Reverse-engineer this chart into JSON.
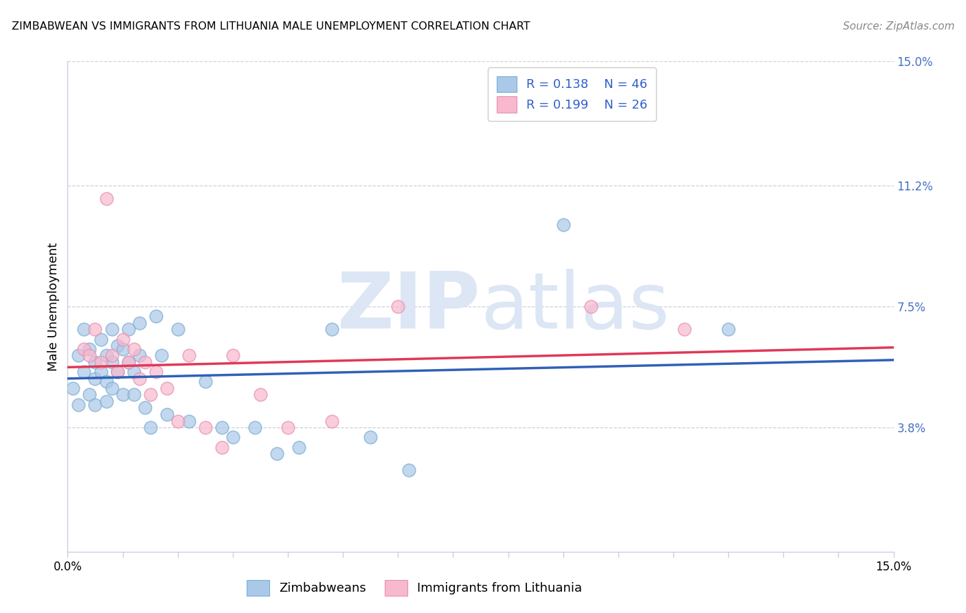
{
  "title": "ZIMBABWEAN VS IMMIGRANTS FROM LITHUANIA MALE UNEMPLOYMENT CORRELATION CHART",
  "source_text": "Source: ZipAtlas.com",
  "ylabel": "Male Unemployment",
  "xlim": [
    0,
    0.15
  ],
  "ylim": [
    0,
    0.15
  ],
  "ytick_positions": [
    0.038,
    0.075,
    0.112,
    0.15
  ],
  "ytick_labels": [
    "3.8%",
    "7.5%",
    "11.2%",
    "15.0%"
  ],
  "legend_labels": [
    "Zimbabweans",
    "Immigrants from Lithuania"
  ],
  "R_blue": "0.138",
  "N_blue": "46",
  "R_pink": "0.199",
  "N_pink": "26",
  "blue_color": "#aac8e8",
  "blue_edge_color": "#7aaed4",
  "pink_color": "#f8b8ce",
  "pink_edge_color": "#e890b0",
  "blue_line_color": "#3060b8",
  "pink_line_color": "#e03858",
  "legend_text_color": "#3060cc",
  "watermark_color": "#dce6f4",
  "grid_color": "#c8d0e0",
  "right_tick_color": "#4472c4",
  "blue_scatter_x": [
    0.001,
    0.002,
    0.002,
    0.003,
    0.003,
    0.004,
    0.004,
    0.005,
    0.005,
    0.005,
    0.006,
    0.006,
    0.007,
    0.007,
    0.007,
    0.008,
    0.008,
    0.008,
    0.009,
    0.009,
    0.01,
    0.01,
    0.011,
    0.011,
    0.012,
    0.012,
    0.013,
    0.013,
    0.014,
    0.015,
    0.016,
    0.017,
    0.018,
    0.02,
    0.022,
    0.025,
    0.028,
    0.03,
    0.034,
    0.038,
    0.042,
    0.048,
    0.055,
    0.062,
    0.09,
    0.12
  ],
  "blue_scatter_y": [
    0.05,
    0.06,
    0.045,
    0.068,
    0.055,
    0.062,
    0.048,
    0.058,
    0.053,
    0.045,
    0.065,
    0.055,
    0.06,
    0.052,
    0.046,
    0.068,
    0.058,
    0.05,
    0.063,
    0.055,
    0.062,
    0.048,
    0.068,
    0.058,
    0.055,
    0.048,
    0.07,
    0.06,
    0.044,
    0.038,
    0.072,
    0.06,
    0.042,
    0.068,
    0.04,
    0.052,
    0.038,
    0.035,
    0.038,
    0.03,
    0.032,
    0.068,
    0.035,
    0.025,
    0.1,
    0.068
  ],
  "pink_scatter_x": [
    0.003,
    0.004,
    0.005,
    0.006,
    0.007,
    0.008,
    0.009,
    0.01,
    0.011,
    0.012,
    0.013,
    0.014,
    0.015,
    0.016,
    0.018,
    0.02,
    0.022,
    0.025,
    0.028,
    0.03,
    0.035,
    0.04,
    0.048,
    0.06,
    0.095,
    0.112
  ],
  "pink_scatter_y": [
    0.062,
    0.06,
    0.068,
    0.058,
    0.108,
    0.06,
    0.055,
    0.065,
    0.058,
    0.062,
    0.053,
    0.058,
    0.048,
    0.055,
    0.05,
    0.04,
    0.06,
    0.038,
    0.032,
    0.06,
    0.048,
    0.038,
    0.04,
    0.075,
    0.075,
    0.068
  ]
}
